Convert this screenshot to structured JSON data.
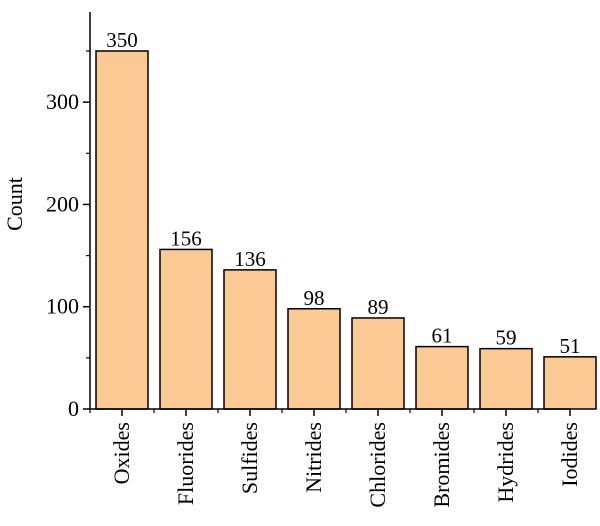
{
  "chart_data": {
    "type": "bar",
    "categories": [
      "Oxides",
      "Fluorides",
      "Sulfides",
      "Nitrides",
      "Chlorides",
      "Bromides",
      "Hydrides",
      "Iodides"
    ],
    "values": [
      350,
      156,
      136,
      98,
      89,
      61,
      59,
      51
    ],
    "value_labels": [
      "350",
      "156",
      "136",
      "98",
      "89",
      "61",
      "59",
      "51"
    ],
    "ylabel": "Count",
    "xlabel": "",
    "ylim": [
      0,
      350
    ],
    "yticks": [
      0,
      100,
      200,
      300
    ],
    "ytick_labels": [
      "0",
      "100",
      "200",
      "300"
    ],
    "grid": false,
    "bar_color": "#fcc995",
    "edge_color": "#000000"
  }
}
